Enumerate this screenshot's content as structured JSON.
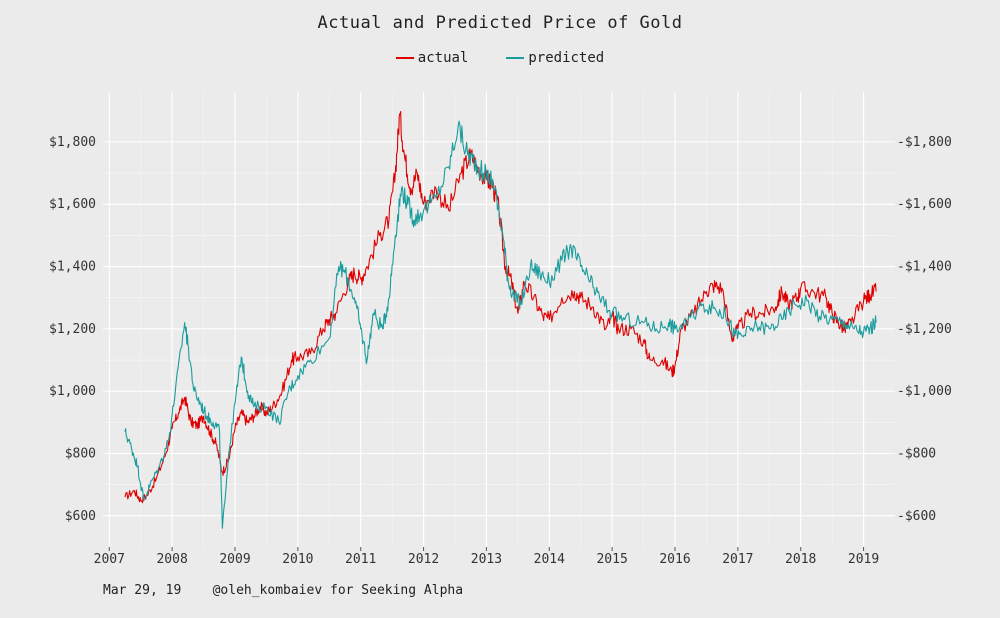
{
  "footer": {
    "date": "Mar 29, 19",
    "credit": "@oleh_kombaiev for Seeking Alpha"
  },
  "colors": {
    "actual": "#e00000",
    "predicted": "#1a9c9c",
    "panel": "#ebebeb",
    "grid": "#ffffff"
  },
  "chart_data": {
    "type": "line",
    "title": "Actual and Predicted Price of Gold",
    "xlabel": "",
    "ylabel": "",
    "xlim": [
      2006.9,
      2019.5
    ],
    "ylim": [
      500,
      1960
    ],
    "x_ticks": [
      2007,
      2008,
      2009,
      2010,
      2011,
      2012,
      2013,
      2014,
      2015,
      2016,
      2017,
      2018,
      2019
    ],
    "y_ticks": [
      600,
      800,
      1000,
      1200,
      1400,
      1600,
      1800
    ],
    "y_tick_labels": [
      "$600",
      "$800",
      "$1,000",
      "$1,200",
      "$1,400",
      "$1,600",
      "$1,800"
    ],
    "grid": true,
    "legend": "top-center",
    "series": [
      {
        "name": "actual",
        "x": [
          2007.25,
          2007.4,
          2007.5,
          2007.6,
          2007.75,
          2007.9,
          2008.0,
          2008.1,
          2008.2,
          2008.3,
          2008.4,
          2008.5,
          2008.6,
          2008.7,
          2008.8,
          2008.9,
          2009.0,
          2009.1,
          2009.2,
          2009.3,
          2009.4,
          2009.5,
          2009.6,
          2009.75,
          2009.9,
          2010.0,
          2010.2,
          2010.4,
          2010.5,
          2010.6,
          2010.8,
          2010.9,
          2011.0,
          2011.1,
          2011.3,
          2011.45,
          2011.55,
          2011.62,
          2011.7,
          2011.8,
          2011.9,
          2012.0,
          2012.2,
          2012.4,
          2012.6,
          2012.75,
          2012.85,
          2013.0,
          2013.1,
          2013.2,
          2013.3,
          2013.4,
          2013.5,
          2013.6,
          2013.75,
          2013.9,
          2014.0,
          2014.2,
          2014.4,
          2014.5,
          2014.7,
          2014.9,
          2015.0,
          2015.1,
          2015.3,
          2015.5,
          2015.6,
          2015.8,
          2015.95,
          2016.0,
          2016.1,
          2016.3,
          2016.5,
          2016.6,
          2016.75,
          2016.9,
          2017.0,
          2017.2,
          2017.4,
          2017.6,
          2017.7,
          2017.8,
          2017.95,
          2018.0,
          2018.2,
          2018.4,
          2018.5,
          2018.6,
          2018.7,
          2018.8,
          2019.0,
          2019.1,
          2019.2
        ],
        "values": [
          660,
          680,
          650,
          665,
          720,
          800,
          880,
          930,
          980,
          900,
          890,
          920,
          870,
          830,
          740,
          780,
          880,
          930,
          900,
          920,
          950,
          930,
          950,
          1000,
          1100,
          1110,
          1120,
          1200,
          1230,
          1250,
          1350,
          1380,
          1360,
          1400,
          1500,
          1550,
          1700,
          1890,
          1750,
          1650,
          1700,
          1600,
          1650,
          1580,
          1700,
          1760,
          1720,
          1680,
          1660,
          1580,
          1400,
          1350,
          1250,
          1350,
          1300,
          1240,
          1230,
          1300,
          1320,
          1300,
          1270,
          1200,
          1240,
          1200,
          1200,
          1160,
          1100,
          1100,
          1060,
          1080,
          1200,
          1250,
          1320,
          1340,
          1330,
          1170,
          1200,
          1250,
          1250,
          1270,
          1320,
          1280,
          1300,
          1330,
          1320,
          1300,
          1250,
          1220,
          1200,
          1220,
          1290,
          1310,
          1320
        ]
      },
      {
        "name": "predicted",
        "x": [
          2007.25,
          2007.35,
          2007.45,
          2007.55,
          2007.65,
          2007.8,
          2007.95,
          2008.05,
          2008.2,
          2008.25,
          2008.35,
          2008.45,
          2008.55,
          2008.65,
          2008.75,
          2008.8,
          2008.9,
          2009.0,
          2009.1,
          2009.2,
          2009.3,
          2009.5,
          2009.7,
          2009.85,
          2010.0,
          2010.2,
          2010.5,
          2010.65,
          2010.75,
          2010.9,
          2011.0,
          2011.1,
          2011.2,
          2011.35,
          2011.45,
          2011.55,
          2011.65,
          2011.75,
          2011.85,
          2012.0,
          2012.2,
          2012.4,
          2012.55,
          2012.7,
          2012.8,
          2012.95,
          2013.1,
          2013.25,
          2013.35,
          2013.45,
          2013.55,
          2013.7,
          2013.85,
          2014.0,
          2014.2,
          2014.35,
          2014.5,
          2014.65,
          2014.8,
          2015.0,
          2015.2,
          2015.5,
          2015.7,
          2015.9,
          2016.0,
          2016.2,
          2016.45,
          2016.65,
          2016.8,
          2016.95,
          2017.1,
          2017.3,
          2017.5,
          2017.7,
          2017.9,
          2018.1,
          2018.3,
          2018.5,
          2018.7,
          2018.85,
          2019.0,
          2019.1,
          2019.2
        ],
        "values": [
          870,
          820,
          760,
          650,
          700,
          760,
          850,
          1000,
          1220,
          1150,
          1000,
          960,
          920,
          900,
          880,
          560,
          800,
          960,
          1110,
          1000,
          950,
          950,
          900,
          1000,
          1050,
          1100,
          1170,
          1400,
          1380,
          1300,
          1200,
          1100,
          1250,
          1200,
          1300,
          1500,
          1650,
          1600,
          1550,
          1580,
          1620,
          1720,
          1850,
          1760,
          1740,
          1700,
          1680,
          1520,
          1350,
          1300,
          1280,
          1400,
          1380,
          1350,
          1420,
          1460,
          1400,
          1350,
          1300,
          1250,
          1230,
          1220,
          1200,
          1220,
          1200,
          1220,
          1280,
          1260,
          1250,
          1180,
          1180,
          1210,
          1200,
          1230,
          1280,
          1290,
          1240,
          1230,
          1220,
          1200,
          1190,
          1200,
          1220
        ]
      }
    ]
  }
}
